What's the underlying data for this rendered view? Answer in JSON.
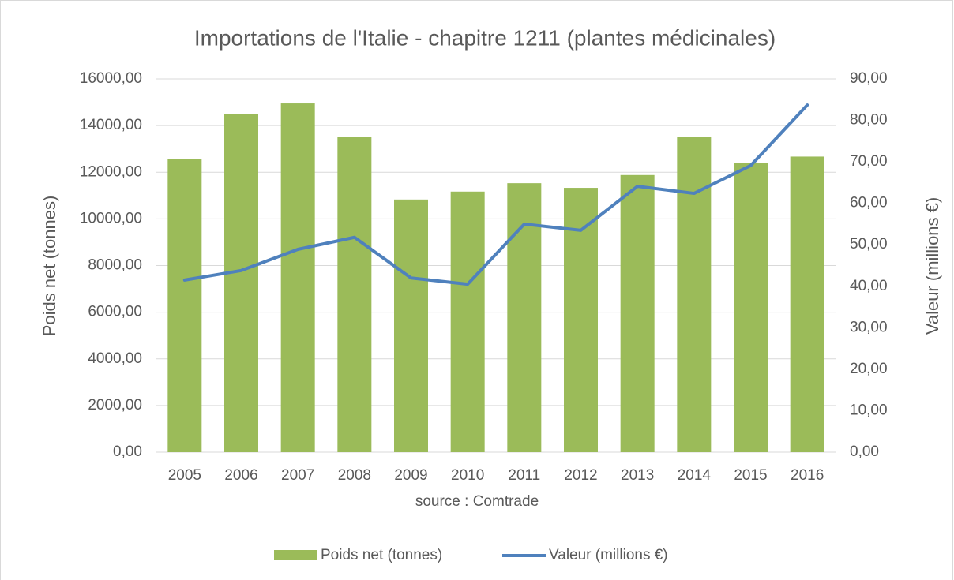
{
  "chart_data": {
    "type": "bar-line",
    "title": "Importations de l'Italie - chapitre 1211 (plantes médicinales)",
    "x_label": "source : Comtrade",
    "y_label": "Poids net (tonnes)",
    "y2_label": "Valeur (millions €)",
    "categories": [
      "2005",
      "2006",
      "2007",
      "2008",
      "2009",
      "2010",
      "2011",
      "2012",
      "2013",
      "2014",
      "2015",
      "2016"
    ],
    "series": [
      {
        "name": "Poids net (tonnes)",
        "type": "bar",
        "color": "#9bbb59",
        "values": [
          12550,
          14500,
          14950,
          13520,
          10830,
          11170,
          11530,
          11330,
          11880,
          13520,
          12400,
          12670
        ]
      },
      {
        "name": "Valeur (millions €)",
        "type": "line",
        "axis": "y2",
        "color": "#4f81bd",
        "values": [
          41.5,
          43.8,
          48.9,
          51.8,
          42.0,
          40.5,
          55.0,
          53.5,
          64.1,
          62.4,
          69.1,
          83.7
        ]
      }
    ],
    "ylim": [
      0,
      16000
    ],
    "yticks": [
      {
        "value": 0,
        "label": "0,00"
      },
      {
        "value": 2000,
        "label": "2000,00"
      },
      {
        "value": 4000,
        "label": "4000,00"
      },
      {
        "value": 6000,
        "label": "6000,00"
      },
      {
        "value": 8000,
        "label": "8000,00"
      },
      {
        "value": 10000,
        "label": "10000,00"
      },
      {
        "value": 12000,
        "label": "12000,00"
      },
      {
        "value": 14000,
        "label": "14000,00"
      },
      {
        "value": 16000,
        "label": "16000,00"
      }
    ],
    "y2lim": [
      0,
      90
    ],
    "y2ticks": [
      {
        "value": 0,
        "label": "0,00"
      },
      {
        "value": 10,
        "label": "10,00"
      },
      {
        "value": 20,
        "label": "20,00"
      },
      {
        "value": 30,
        "label": "30,00"
      },
      {
        "value": 40,
        "label": "40,00"
      },
      {
        "value": 50,
        "label": "50,00"
      },
      {
        "value": 60,
        "label": "60,00"
      },
      {
        "value": 70,
        "label": "70,00"
      },
      {
        "value": 80,
        "label": "80,00"
      },
      {
        "value": 90,
        "label": "90,00"
      }
    ],
    "grid": true,
    "legend": "bottom"
  }
}
